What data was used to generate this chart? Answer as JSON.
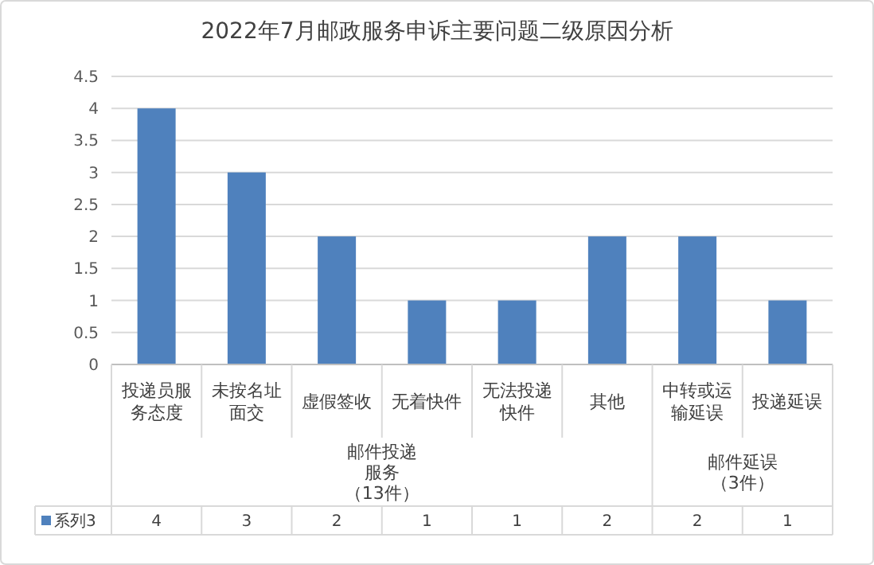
{
  "chart_data": {
    "type": "bar",
    "title": "2022年7月邮政服务申诉主要问题二级原因分析",
    "categories": [
      "投递员服务态度",
      "未按名址面交",
      "虚假签收",
      "无着快件",
      "无法投递快件",
      "其他",
      "中转或运输延误",
      "投递延误"
    ],
    "series": [
      {
        "name": "系列3",
        "color": "#4f81bd",
        "values": [
          4,
          3,
          2,
          1,
          1,
          2,
          2,
          1
        ]
      }
    ],
    "ylim": [
      0,
      4.5
    ],
    "yticks": [
      0,
      0.5,
      1,
      1.5,
      2,
      2.5,
      3,
      3.5,
      4,
      4.5
    ],
    "grid": "y",
    "data_labels": true,
    "annotations": [
      "邮件投递服务（13件）",
      "邮件延误（3件）"
    ]
  }
}
